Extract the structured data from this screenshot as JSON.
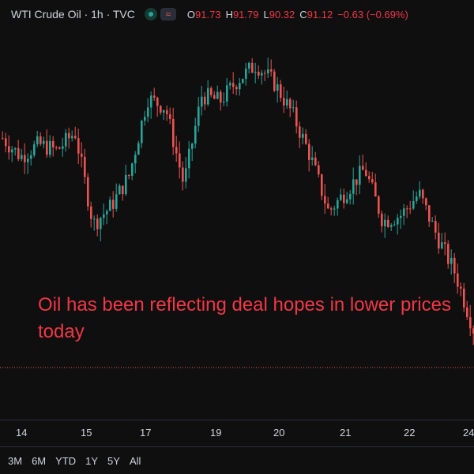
{
  "header": {
    "title": "WTI Crude Oil · 1h · TVC",
    "status_icon": "market-open-dot",
    "indicator_icon": "wave-icon",
    "o_label": "O",
    "o_value": "91.73",
    "h_label": "H",
    "h_value": "91.79",
    "l_label": "L",
    "l_value": "90.32",
    "c_label": "C",
    "c_value": "91.12",
    "change": "−0.63 (−0.69%)"
  },
  "annotation": "Oil has been reflecting deal hopes in lower prices today",
  "time_axis": [
    "14",
    "15",
    "17",
    "19",
    "20",
    "21",
    "22",
    "24"
  ],
  "ranges": [
    "3M",
    "6M",
    "YTD",
    "1Y",
    "5Y",
    "All"
  ],
  "colors": {
    "up": "#26a69a",
    "down": "#ef5350",
    "text": "#d1d4dc",
    "alert": "#f23645"
  },
  "chart_data": {
    "type": "candlestick",
    "interval": "1h",
    "symbol": "WTI Crude Oil",
    "x_ticks": [
      "14",
      "15",
      "17",
      "19",
      "20",
      "21",
      "22",
      "24"
    ],
    "points": [
      {
        "x": "14",
        "trend": 0.72
      },
      {
        "x": "14",
        "trend": 0.66
      },
      {
        "x": "14",
        "trend": 0.7
      },
      {
        "x": "15",
        "trend": 0.68
      },
      {
        "x": "15",
        "trend": 0.74
      },
      {
        "x": "15",
        "trend": 0.44
      },
      {
        "x": "15",
        "trend": 0.5
      },
      {
        "x": "17",
        "trend": 0.6
      },
      {
        "x": "17",
        "trend": 0.85
      },
      {
        "x": "17",
        "trend": 0.82
      },
      {
        "x": "17",
        "trend": 0.57
      },
      {
        "x": "19",
        "trend": 0.86
      },
      {
        "x": "19",
        "trend": 0.84
      },
      {
        "x": "19",
        "trend": 0.91
      },
      {
        "x": "20",
        "trend": 0.96
      },
      {
        "x": "20",
        "trend": 0.9
      },
      {
        "x": "20",
        "trend": 0.8
      },
      {
        "x": "21",
        "trend": 0.66
      },
      {
        "x": "21",
        "trend": 0.48
      },
      {
        "x": "21",
        "trend": 0.55
      },
      {
        "x": "21",
        "trend": 0.62
      },
      {
        "x": "22",
        "trend": 0.45
      },
      {
        "x": "22",
        "trend": 0.47
      },
      {
        "x": "22",
        "trend": 0.54
      },
      {
        "x": "22",
        "trend": 0.4
      },
      {
        "x": "24",
        "trend": 0.28
      },
      {
        "x": "24",
        "trend": 0.1
      }
    ]
  }
}
